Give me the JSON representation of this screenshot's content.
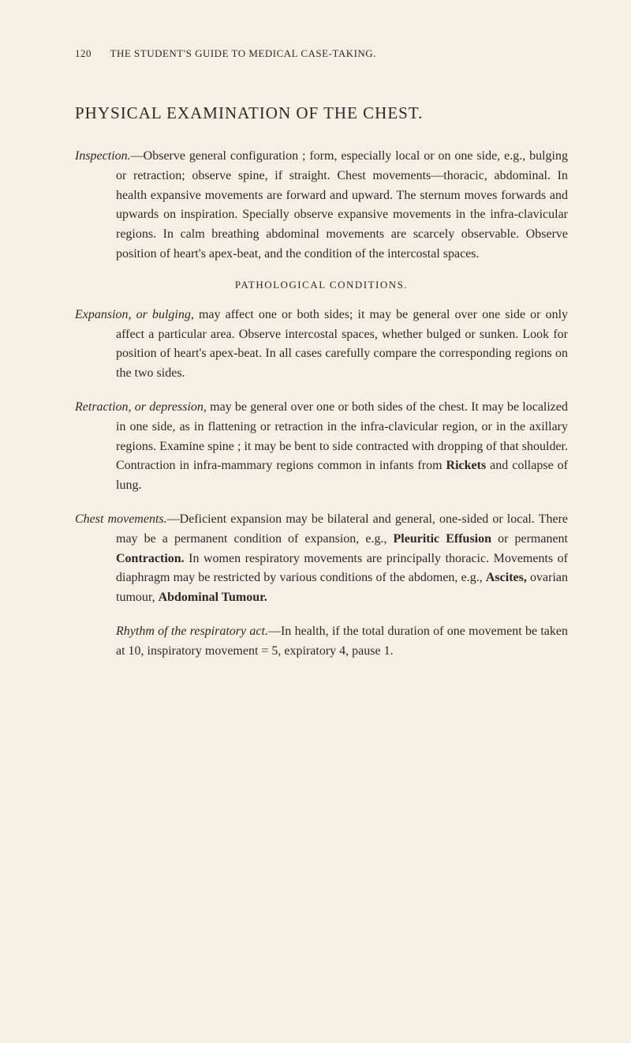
{
  "page": {
    "number": "120",
    "running_header": "THE STUDENT'S GUIDE TO MEDICAL CASE-TAKING."
  },
  "title": "PHYSICAL EXAMINATION OF THE CHEST.",
  "inspection": {
    "label": "Inspection.",
    "text": "—Observe general configuration ; form, especially local or on one side, e.g., bulging or retraction; observe spine, if straight. Chest movements—thoracic, abdominal. In health expansive movements are forward and upward. The sternum moves forwards and upwards on inspiration. Specially observe expansive movements in the infra-clavicular regions. In calm breathing abdominal movements are scarcely observable. Observe position of heart's apex-beat, and the condition of the intercostal spaces."
  },
  "pathological_heading": "PATHOLOGICAL CONDITIONS.",
  "expansion": {
    "label": "Expansion,",
    "label2": "or bulging,",
    "text": "may affect one or both sides; it may be general over one side or only affect a particular area. Observe intercostal spaces, whether bulged or sunken. Look for position of heart's apex-beat. In all cases carefully compare the corresponding regions on the two sides."
  },
  "retraction": {
    "label": "Retraction,",
    "label2": "or depression,",
    "text": "may be general over one or both sides of the chest. It may be localized in one side, as in flattening or retraction in the infra-clavicular region, or in the axillary regions. Examine spine ; it may be bent to side contracted with dropping of that shoulder. Contraction in infra-mammary regions common in infants from ",
    "bold1": "Rickets",
    "text2": " and collapse of lung."
  },
  "chest_movements": {
    "label": "Chest movements.",
    "text1": "—Deficient expansion may be bilateral and general, one-sided or local. There may be a permanent condition of expansion, e.g., ",
    "bold1": "Pleuritic Effusion",
    "text2": " or permanent ",
    "bold2": "Contraction.",
    "text3": " In women respiratory movements are principally thoracic. Movements of diaphragm may be restricted by various conditions of the abdomen, e.g., ",
    "bold3": "Ascites,",
    "text4": " ovarian tumour, ",
    "bold4": "Abdominal Tumour."
  },
  "rhythm": {
    "label": "Rhythm of the respiratory act.",
    "text": "—In health, if the total duration of one movement be taken at 10, inspiratory movement = 5, expiratory 4, pause 1."
  },
  "colors": {
    "background": "#f5f0e4",
    "text": "#2a2a2a"
  },
  "typography": {
    "body_fontsize": 16,
    "title_fontsize": 21,
    "header_fontsize": 13,
    "line_height": 1.55
  }
}
